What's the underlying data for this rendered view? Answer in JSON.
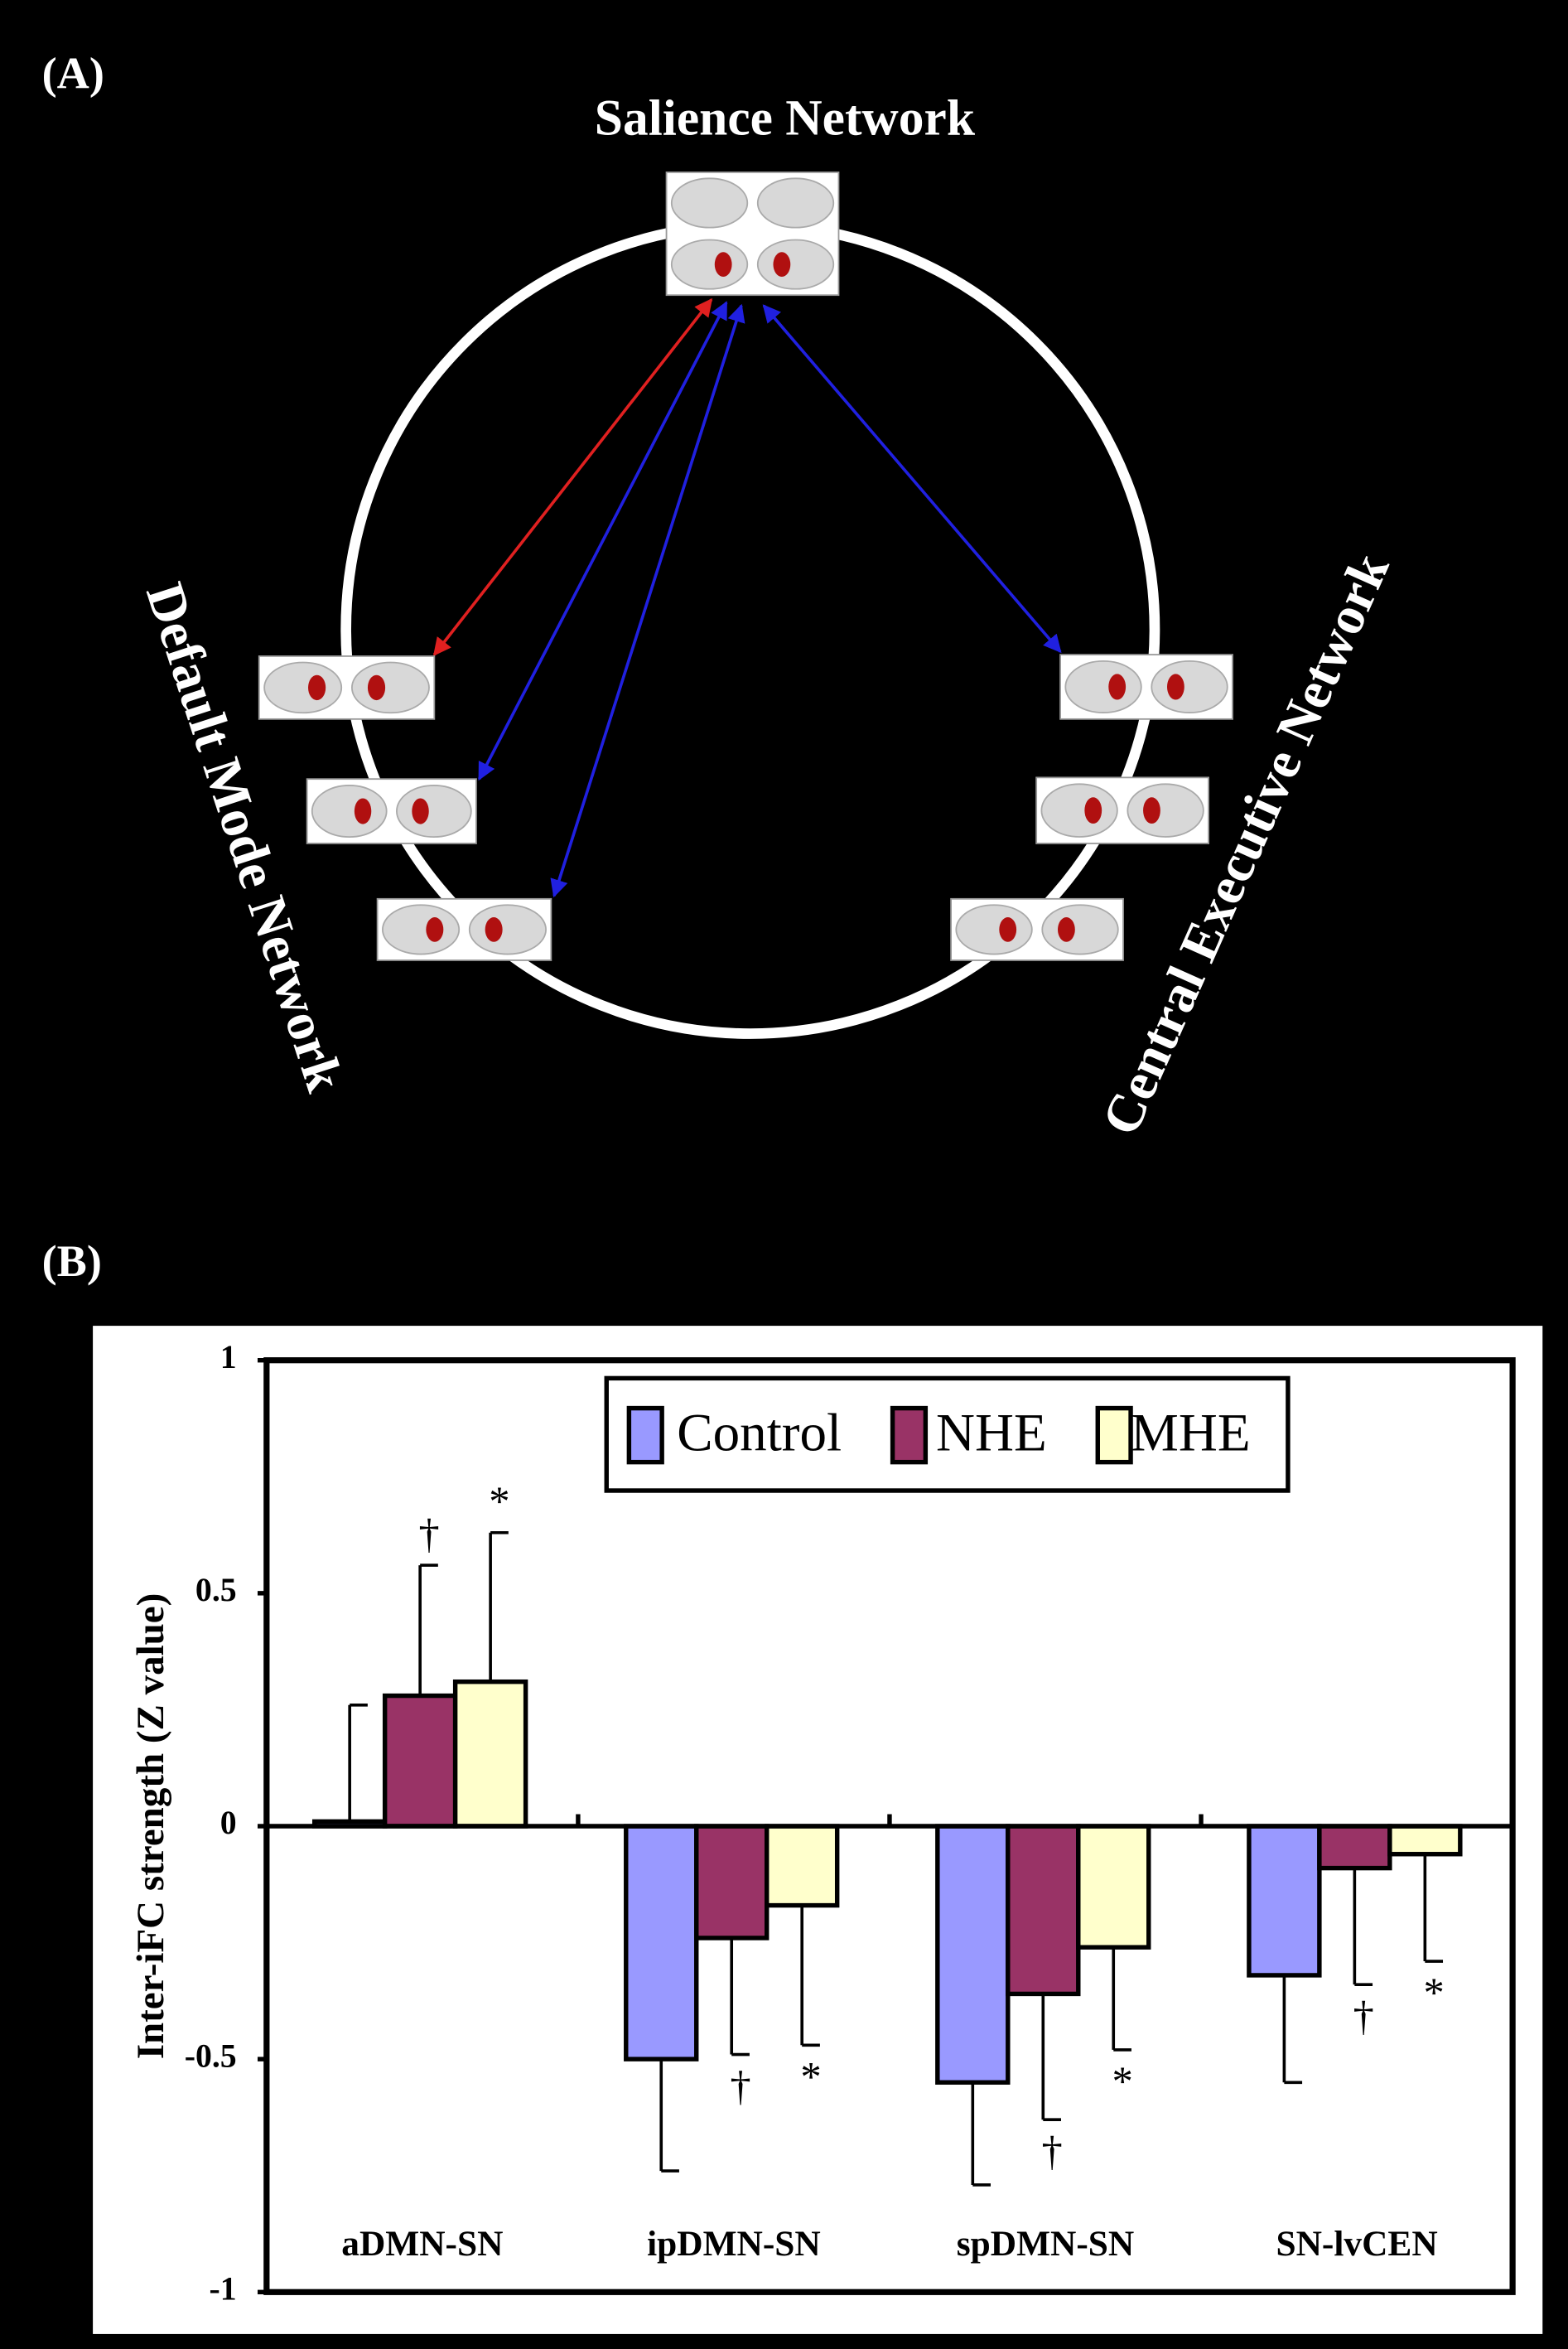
{
  "diagram": {
    "panel_a": "(A)",
    "panel_b": "(B)",
    "nodes": [
      "Salience Network",
      "Default Mode Network",
      "Central Executive Network"
    ]
  },
  "chart_data": {
    "type": "bar",
    "ylabel": "Inter-iFC strength (Z value)",
    "categories": [
      "aDMN-SN",
      "ipDMN-SN",
      "spDMN-SN",
      "SN-lvCEN"
    ],
    "series": [
      {
        "name": "Control",
        "color": "#9999ff",
        "values": [
          0.01,
          -0.5,
          -0.55,
          -0.32
        ],
        "errors": [
          0.25,
          0.24,
          0.22,
          0.23
        ]
      },
      {
        "name": "NHE",
        "color": "#993366",
        "values": [
          0.28,
          -0.24,
          -0.36,
          -0.09
        ],
        "errors": [
          0.28,
          0.25,
          0.27,
          0.25
        ],
        "marks": [
          "†",
          "†",
          "†",
          "†"
        ]
      },
      {
        "name": "MHE",
        "color": "#ffffcc",
        "values": [
          0.31,
          -0.17,
          -0.26,
          -0.06
        ],
        "errors": [
          0.32,
          0.3,
          0.22,
          0.23
        ],
        "marks": [
          "*",
          "*",
          "*",
          "*"
        ]
      }
    ],
    "ylim": [
      -1,
      1
    ],
    "yticks": [
      1,
      0.5,
      0,
      -0.5,
      -1
    ],
    "legend": "top"
  }
}
